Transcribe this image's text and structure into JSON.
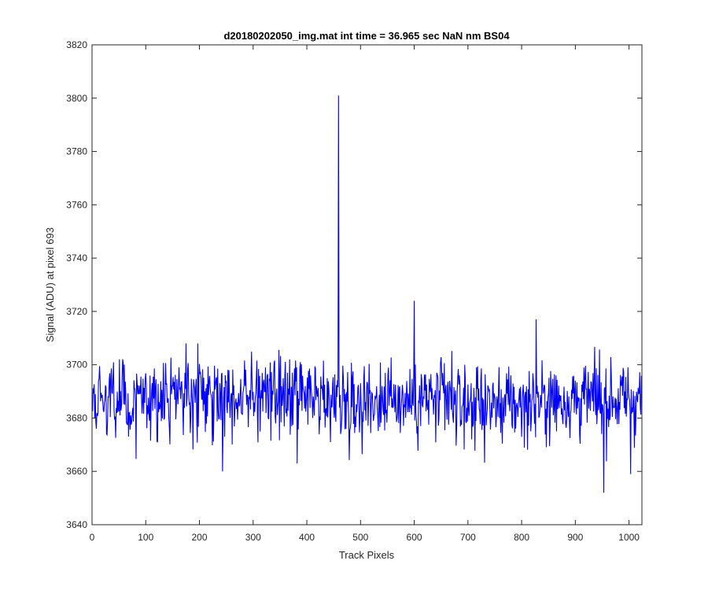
{
  "chart_data": {
    "type": "line",
    "title": "d20180202050_img.mat int time = 36.965 sec  NaN nm BS04",
    "xlabel": "Track Pixels",
    "ylabel": "Signal (ADU) at pixel 693",
    "xlim": [
      0,
      1024
    ],
    "ylim": [
      3640,
      3820
    ],
    "xticks": [
      0,
      100,
      200,
      300,
      400,
      500,
      600,
      700,
      800,
      900,
      1000
    ],
    "yticks": [
      3640,
      3660,
      3680,
      3700,
      3720,
      3740,
      3760,
      3780,
      3800,
      3820
    ],
    "grid": false,
    "line_color": "#0000ff",
    "n_points": 1024,
    "baseline_level": 3687,
    "noise_range": [
      3660,
      3710
    ],
    "notable_points": [
      {
        "x": 459,
        "y": 3801
      },
      {
        "x": 600,
        "y": 3724
      },
      {
        "x": 827,
        "y": 3717
      },
      {
        "x": 382,
        "y": 3663
      },
      {
        "x": 243,
        "y": 3660
      },
      {
        "x": 953,
        "y": 3652
      },
      {
        "x": 1003,
        "y": 3659
      }
    ]
  }
}
